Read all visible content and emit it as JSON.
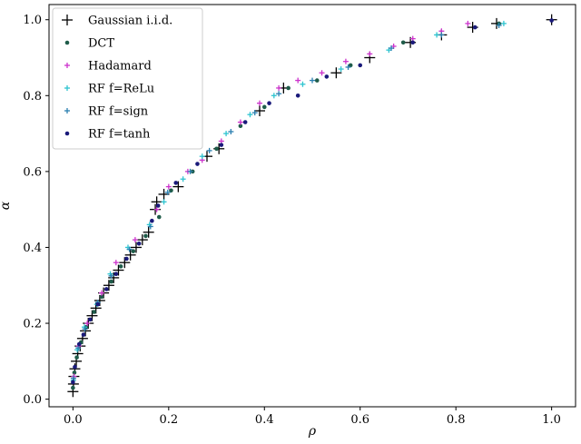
{
  "chart_data": {
    "type": "scatter",
    "xlabel": "ρ",
    "ylabel": "α",
    "xlim": [
      -0.05,
      1.05
    ],
    "ylim": [
      -0.02,
      1.04
    ],
    "xticks": [
      0.0,
      0.2,
      0.4,
      0.6,
      0.8,
      1.0
    ],
    "yticks": [
      0.0,
      0.2,
      0.4,
      0.6,
      0.8,
      1.0
    ],
    "xtick_labels": [
      "0.0",
      "0.2",
      "0.4",
      "0.6",
      "0.8",
      "1.0"
    ],
    "ytick_labels": [
      "0.0",
      "0.2",
      "0.4",
      "0.6",
      "0.8",
      "1.0"
    ],
    "grid": false,
    "legend_position": "top-left",
    "series": [
      {
        "name": "Gaussian i.i.d.",
        "color": "#000000",
        "marker": "plus-large",
        "points": [
          [
            0.0,
            0.02
          ],
          [
            0.001,
            0.04
          ],
          [
            0.002,
            0.06
          ],
          [
            0.004,
            0.08
          ],
          [
            0.007,
            0.1
          ],
          [
            0.01,
            0.12
          ],
          [
            0.015,
            0.14
          ],
          [
            0.02,
            0.16
          ],
          [
            0.026,
            0.18
          ],
          [
            0.032,
            0.2
          ],
          [
            0.04,
            0.22
          ],
          [
            0.048,
            0.24
          ],
          [
            0.056,
            0.26
          ],
          [
            0.064,
            0.28
          ],
          [
            0.075,
            0.3
          ],
          [
            0.085,
            0.32
          ],
          [
            0.095,
            0.34
          ],
          [
            0.108,
            0.36
          ],
          [
            0.12,
            0.38
          ],
          [
            0.132,
            0.4
          ],
          [
            0.145,
            0.42
          ],
          [
            0.158,
            0.44
          ],
          [
            0.172,
            0.5
          ],
          [
            0.175,
            0.52
          ],
          [
            0.19,
            0.54
          ],
          [
            0.22,
            0.56
          ],
          [
            0.28,
            0.64
          ],
          [
            0.305,
            0.66
          ],
          [
            0.39,
            0.76
          ],
          [
            0.44,
            0.82
          ],
          [
            0.55,
            0.86
          ],
          [
            0.62,
            0.9
          ],
          [
            0.705,
            0.94
          ],
          [
            0.77,
            0.96
          ],
          [
            0.835,
            0.98
          ],
          [
            0.885,
            0.99
          ],
          [
            1.0,
            1.0
          ]
        ]
      },
      {
        "name": "DCT",
        "color": "#1f5c4a",
        "marker": "dot",
        "points": [
          [
            0.0,
            0.03
          ],
          [
            0.003,
            0.07
          ],
          [
            0.008,
            0.11
          ],
          [
            0.017,
            0.15
          ],
          [
            0.028,
            0.19
          ],
          [
            0.044,
            0.23
          ],
          [
            0.06,
            0.27
          ],
          [
            0.08,
            0.31
          ],
          [
            0.1,
            0.35
          ],
          [
            0.126,
            0.39
          ],
          [
            0.152,
            0.43
          ],
          [
            0.18,
            0.48
          ],
          [
            0.205,
            0.55
          ],
          [
            0.25,
            0.6
          ],
          [
            0.3,
            0.66
          ],
          [
            0.35,
            0.72
          ],
          [
            0.4,
            0.77
          ],
          [
            0.45,
            0.82
          ],
          [
            0.51,
            0.84
          ],
          [
            0.58,
            0.88
          ],
          [
            0.69,
            0.94
          ],
          [
            0.89,
            0.99
          ]
        ]
      },
      {
        "name": "Hadamard",
        "color": "#cc33cc",
        "marker": "plus-small",
        "points": [
          [
            0.002,
            0.06
          ],
          [
            0.012,
            0.14
          ],
          [
            0.03,
            0.2
          ],
          [
            0.06,
            0.28
          ],
          [
            0.09,
            0.36
          ],
          [
            0.13,
            0.42
          ],
          [
            0.175,
            0.5
          ],
          [
            0.2,
            0.56
          ],
          [
            0.24,
            0.6
          ],
          [
            0.27,
            0.63
          ],
          [
            0.31,
            0.68
          ],
          [
            0.35,
            0.73
          ],
          [
            0.39,
            0.78
          ],
          [
            0.43,
            0.82
          ],
          [
            0.47,
            0.84
          ],
          [
            0.52,
            0.86
          ],
          [
            0.57,
            0.89
          ],
          [
            0.62,
            0.91
          ],
          [
            0.67,
            0.93
          ],
          [
            0.71,
            0.95
          ],
          [
            0.77,
            0.97
          ],
          [
            0.825,
            0.99
          ]
        ]
      },
      {
        "name": "RF f=ReLu",
        "color": "#2ec4d0",
        "marker": "plus-small",
        "points": [
          [
            0.001,
            0.05
          ],
          [
            0.009,
            0.13
          ],
          [
            0.024,
            0.19
          ],
          [
            0.05,
            0.25
          ],
          [
            0.078,
            0.33
          ],
          [
            0.115,
            0.4
          ],
          [
            0.16,
            0.46
          ],
          [
            0.19,
            0.52
          ],
          [
            0.23,
            0.58
          ],
          [
            0.27,
            0.64
          ],
          [
            0.32,
            0.7
          ],
          [
            0.37,
            0.75
          ],
          [
            0.42,
            0.8
          ],
          [
            0.48,
            0.83
          ],
          [
            0.56,
            0.87
          ],
          [
            0.66,
            0.92
          ],
          [
            0.76,
            0.96
          ],
          [
            0.9,
            0.99
          ]
        ]
      },
      {
        "name": "RF f=sign",
        "color": "#2b7fb0",
        "marker": "plus-small",
        "points": [
          [
            0.001,
            0.055
          ],
          [
            0.011,
            0.135
          ],
          [
            0.025,
            0.185
          ],
          [
            0.052,
            0.255
          ],
          [
            0.08,
            0.325
          ],
          [
            0.118,
            0.395
          ],
          [
            0.162,
            0.455
          ],
          [
            0.198,
            0.545
          ],
          [
            0.245,
            0.6
          ],
          [
            0.285,
            0.655
          ],
          [
            0.33,
            0.705
          ],
          [
            0.38,
            0.755
          ],
          [
            0.43,
            0.805
          ],
          [
            0.5,
            0.84
          ],
          [
            0.575,
            0.875
          ],
          [
            0.665,
            0.925
          ],
          [
            0.77,
            0.96
          ],
          [
            0.89,
            0.985
          ]
        ]
      },
      {
        "name": "RF f=tanh",
        "color": "#1a1a7a",
        "marker": "dot",
        "points": [
          [
            0.0,
            0.045
          ],
          [
            0.004,
            0.085
          ],
          [
            0.013,
            0.145
          ],
          [
            0.022,
            0.17
          ],
          [
            0.036,
            0.21
          ],
          [
            0.052,
            0.25
          ],
          [
            0.07,
            0.29
          ],
          [
            0.09,
            0.33
          ],
          [
            0.112,
            0.37
          ],
          [
            0.138,
            0.41
          ],
          [
            0.165,
            0.47
          ],
          [
            0.178,
            0.51
          ],
          [
            0.215,
            0.57
          ],
          [
            0.26,
            0.62
          ],
          [
            0.31,
            0.67
          ],
          [
            0.36,
            0.73
          ],
          [
            0.41,
            0.78
          ],
          [
            0.47,
            0.8
          ],
          [
            0.53,
            0.85
          ],
          [
            0.6,
            0.88
          ],
          [
            0.71,
            0.94
          ],
          [
            0.84,
            0.98
          ],
          [
            1.0,
            0.998
          ]
        ]
      }
    ]
  }
}
